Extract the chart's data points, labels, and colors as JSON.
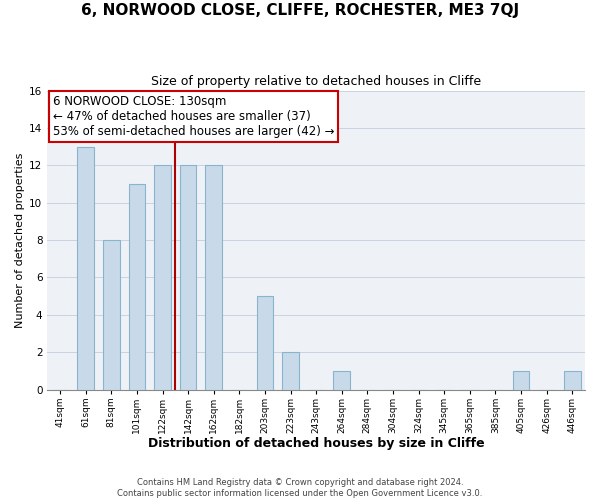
{
  "title": "6, NORWOOD CLOSE, CLIFFE, ROCHESTER, ME3 7QJ",
  "subtitle": "Size of property relative to detached houses in Cliffe",
  "xlabel": "Distribution of detached houses by size in Cliffe",
  "ylabel": "Number of detached properties",
  "categories": [
    "41sqm",
    "61sqm",
    "81sqm",
    "101sqm",
    "122sqm",
    "142sqm",
    "162sqm",
    "182sqm",
    "203sqm",
    "223sqm",
    "243sqm",
    "264sqm",
    "284sqm",
    "304sqm",
    "324sqm",
    "345sqm",
    "365sqm",
    "385sqm",
    "405sqm",
    "426sqm",
    "446sqm"
  ],
  "bar_heights": [
    0,
    13,
    8,
    11,
    12,
    12,
    12,
    0,
    5,
    2,
    0,
    1,
    0,
    0,
    0,
    0,
    0,
    0,
    1,
    0,
    1
  ],
  "bar_color": "#c8daea",
  "bar_edge_color": "#88b4cc",
  "vline_index": 4.5,
  "vline_color": "#aa0000",
  "annotation_text": "6 NORWOOD CLOSE: 130sqm\n← 47% of detached houses are smaller (37)\n53% of semi-detached houses are larger (42) →",
  "annotation_box_color": "#cc0000",
  "ylim": [
    0,
    16
  ],
  "yticks": [
    0,
    2,
    4,
    6,
    8,
    10,
    12,
    14,
    16
  ],
  "grid_color": "#c8d4e0",
  "background_color": "#eef2f7",
  "footer_line1": "Contains HM Land Registry data © Crown copyright and database right 2024.",
  "footer_line2": "Contains public sector information licensed under the Open Government Licence v3.0.",
  "title_fontsize": 11,
  "subtitle_fontsize": 9,
  "xlabel_fontsize": 9,
  "ylabel_fontsize": 8,
  "annotation_fontsize": 8.5
}
